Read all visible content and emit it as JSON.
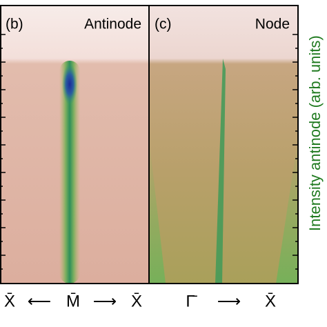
{
  "panels": [
    {
      "label": "(b)",
      "title": "Antinode"
    },
    {
      "label": "(c)",
      "title": "Node"
    }
  ],
  "axis_labels": {
    "left": [
      "X̄",
      "⟵",
      "M̄",
      "⟶",
      "X̄"
    ],
    "right": [
      "Γ̄",
      "⟶",
      "X̄"
    ]
  },
  "y_axis_label": "Intensity antinode (arb. units)"
}
